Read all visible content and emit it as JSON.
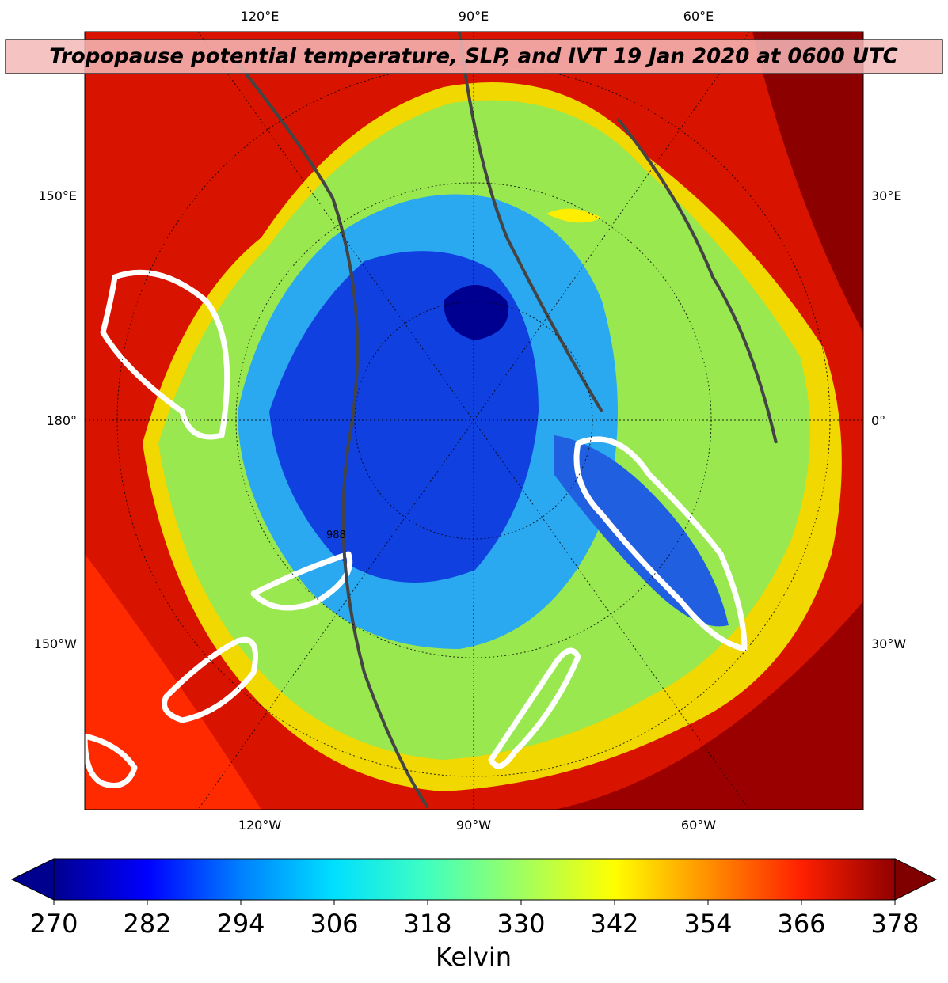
{
  "map": {
    "title": "Tropopause potential temperature, SLP, and IVT 19 Jan 2020 at 0600 UTC",
    "lon_labels_top": [
      "120°E",
      "90°E",
      "60°E"
    ],
    "lon_labels_bottom": [
      "120°W",
      "90°W",
      "60°W"
    ],
    "lon_labels_left": [
      "150°E",
      "180°",
      "150°W"
    ],
    "lon_labels_right": [
      "30°E",
      "0°",
      "30°W"
    ],
    "contour_labels": [
      "988"
    ],
    "colorbar": {
      "label": "Kelvin",
      "lim": [
        270,
        378
      ],
      "ticks": [
        270,
        282,
        294,
        306,
        318,
        330,
        342,
        354,
        366,
        378
      ],
      "colors": [
        "#00008f",
        "#0000ff",
        "#0080ff",
        "#00e0ff",
        "#40ffc0",
        "#a0ff60",
        "#ffff00",
        "#ff9000",
        "#ff2000",
        "#900000"
      ],
      "under_color": "#00008f",
      "over_color": "#800000"
    }
  }
}
